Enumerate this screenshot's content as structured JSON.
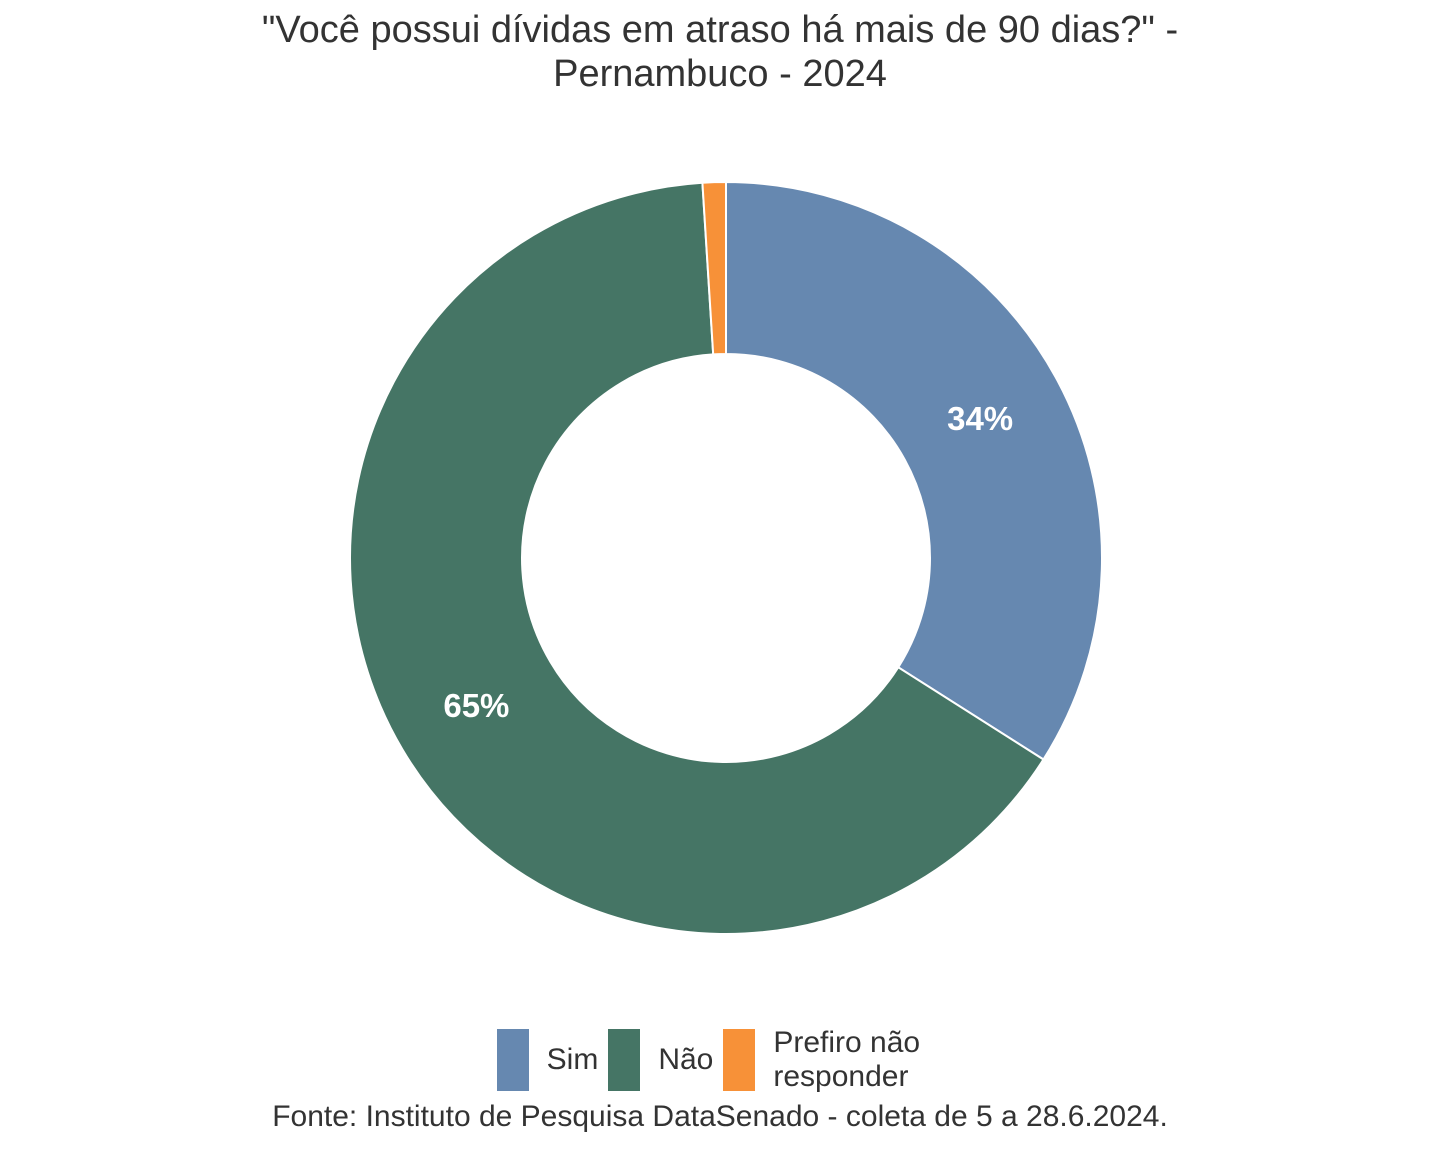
{
  "chart_data": {
    "type": "pie",
    "subtype": "donut",
    "title_lines": [
      "\"Você possui dívidas em atraso há mais de 90 dias?\" -",
      "Pernambuco - 2024"
    ],
    "categories": [
      "Sim",
      "Não",
      "Prefiro não responder"
    ],
    "values": [
      34,
      65,
      1
    ],
    "data_labels": [
      "34%",
      "65%",
      ""
    ],
    "colors": [
      "#6688B0",
      "#457565",
      "#F79138"
    ],
    "legend": {
      "position": "bottom",
      "entries": [
        "Sim",
        "Não",
        "Prefiro não\nresponder"
      ]
    },
    "source": "Fonte: Instituto de Pesquisa DataSenado - coleta de 5 a 28.6.2024."
  }
}
